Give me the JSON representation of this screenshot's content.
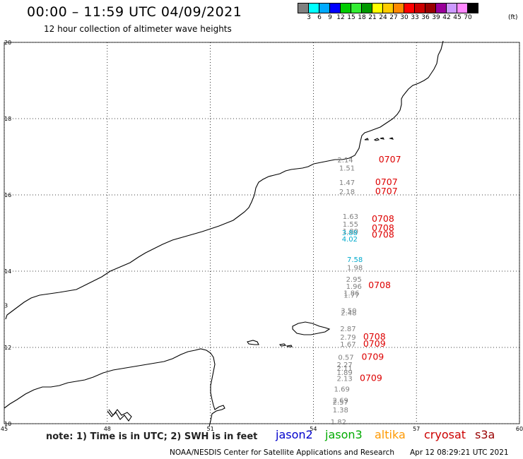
{
  "header": {
    "title": "00:00 – 11:59 UTC 04/09/2021",
    "subtitle": "12 hour collection of altimeter wave heights"
  },
  "legend": {
    "unit": "(ft)",
    "colors": [
      "#808080",
      "#00ffff",
      "#00aaff",
      "#0000ff",
      "#00cc00",
      "#33ee33",
      "#009900",
      "#ffff00",
      "#ffcc00",
      "#ff8800",
      "#ff0000",
      "#cc0000",
      "#990000",
      "#990099",
      "#cc99ff",
      "#ff88ff",
      "#000000"
    ],
    "labels": [
      "3",
      "6",
      "9",
      "12",
      "15",
      "18",
      "21",
      "24",
      "27",
      "30",
      "33",
      "36",
      "39",
      "42",
      "45",
      "70"
    ]
  },
  "map": {
    "lat_range": [
      10,
      20
    ],
    "lon_range": [
      45,
      60
    ],
    "lat_labels": [
      "20",
      "18",
      "16",
      "14",
      "12",
      "10"
    ],
    "lon_labels": [
      "45",
      "48",
      "51",
      "54",
      "57",
      "60"
    ],
    "left_edge_label": "3",
    "wave_heights": [
      {
        "text": "2.14",
        "color": "#808080",
        "lon": 54.7,
        "lat": 16.85
      },
      {
        "text": "1.51",
        "color": "#808080",
        "lon": 54.75,
        "lat": 16.64
      },
      {
        "text": "1.47",
        "color": "#808080",
        "lon": 54.75,
        "lat": 16.26
      },
      {
        "text": "2.18",
        "color": "#808080",
        "lon": 54.75,
        "lat": 16.02
      },
      {
        "text": "1.63",
        "color": "#808080",
        "lon": 54.85,
        "lat": 15.37
      },
      {
        "text": "1.55",
        "color": "#808080",
        "lon": 54.85,
        "lat": 15.17
      },
      {
        "text": "1.80",
        "color": "#808080",
        "lon": 54.85,
        "lat": 14.98
      },
      {
        "text": "3.88",
        "color": "#00aacc",
        "lon": 54.83,
        "lat": 14.94
      },
      {
        "text": "4.02",
        "color": "#00aacc",
        "lon": 54.83,
        "lat": 14.78
      },
      {
        "text": "7.58",
        "color": "#00aacc",
        "lon": 54.98,
        "lat": 14.24
      },
      {
        "text": "1.98",
        "color": "#808080",
        "lon": 54.98,
        "lat": 14.03
      },
      {
        "text": "2.95",
        "color": "#808080",
        "lon": 54.95,
        "lat": 13.72
      },
      {
        "text": "1.96",
        "color": "#808080",
        "lon": 54.95,
        "lat": 13.54
      },
      {
        "text": "1.86",
        "color": "#808080",
        "lon": 54.88,
        "lat": 13.36
      },
      {
        "text": "1.77",
        "color": "#808080",
        "lon": 54.88,
        "lat": 13.31
      },
      {
        "text": "3.50",
        "color": "#808080",
        "lon": 54.8,
        "lat": 12.9
      },
      {
        "text": "2.48",
        "color": "#808080",
        "lon": 54.8,
        "lat": 12.84
      },
      {
        "text": "2.87",
        "color": "#808080",
        "lon": 54.78,
        "lat": 12.43
      },
      {
        "text": "2.79",
        "color": "#808080",
        "lon": 54.78,
        "lat": 12.2
      },
      {
        "text": "1.67",
        "color": "#808080",
        "lon": 54.78,
        "lat": 12.02
      },
      {
        "text": "0.57",
        "color": "#808080",
        "lon": 54.72,
        "lat": 11.68
      },
      {
        "text": "2.27",
        "color": "#808080",
        "lon": 54.68,
        "lat": 11.48
      },
      {
        "text": "2.11",
        "color": "#808080",
        "lon": 54.68,
        "lat": 11.39
      },
      {
        "text": "1.89",
        "color": "#808080",
        "lon": 54.68,
        "lat": 11.28
      },
      {
        "text": "2.13",
        "color": "#808080",
        "lon": 54.68,
        "lat": 11.12
      },
      {
        "text": "1.69",
        "color": "#808080",
        "lon": 54.6,
        "lat": 10.84
      },
      {
        "text": "2.69",
        "color": "#808080",
        "lon": 54.56,
        "lat": 10.55
      },
      {
        "text": "2.57",
        "color": "#808080",
        "lon": 54.56,
        "lat": 10.5
      },
      {
        "text": "1.38",
        "color": "#808080",
        "lon": 54.56,
        "lat": 10.3
      },
      {
        "text": "1.82",
        "color": "#808080",
        "lon": 54.5,
        "lat": 9.98
      }
    ],
    "time_labels": [
      {
        "text": "0707",
        "color": "#dd0000",
        "lon": 55.9,
        "lat": 16.85
      },
      {
        "text": "0707",
        "color": "#dd0000",
        "lon": 55.8,
        "lat": 16.26
      },
      {
        "text": "0707",
        "color": "#dd0000",
        "lon": 55.8,
        "lat": 16.02
      },
      {
        "text": "0708",
        "color": "#dd0000",
        "lon": 55.7,
        "lat": 15.3
      },
      {
        "text": "0708",
        "color": "#dd0000",
        "lon": 55.7,
        "lat": 15.06
      },
      {
        "text": "0708",
        "color": "#dd0000",
        "lon": 55.7,
        "lat": 14.88
      },
      {
        "text": "0708",
        "color": "#dd0000",
        "lon": 55.6,
        "lat": 13.56
      },
      {
        "text": "0708",
        "color": "#dd0000",
        "lon": 55.45,
        "lat": 12.2
      },
      {
        "text": "0709",
        "color": "#dd0000",
        "lon": 55.45,
        "lat": 12.02
      },
      {
        "text": "0709",
        "color": "#dd0000",
        "lon": 55.4,
        "lat": 11.68
      },
      {
        "text": "0709",
        "color": "#dd0000",
        "lon": 55.35,
        "lat": 11.12
      }
    ]
  },
  "footer": {
    "note": "note: 1) Time is in UTC; 2) SWH is in feet",
    "satellites": [
      {
        "name": "jason2",
        "color": "#0000cc"
      },
      {
        "name": "jason3",
        "color": "#00aa00"
      },
      {
        "name": "altika",
        "color": "#ff9900"
      },
      {
        "name": "cryosat",
        "color": "#cc0000"
      },
      {
        "name": "s3a",
        "color": "#990000"
      }
    ],
    "credit": "NOAA/NESDIS Center for Satellite Applications and Research",
    "timestamp": "Apr 12 08:29:21 UTC 2021"
  }
}
